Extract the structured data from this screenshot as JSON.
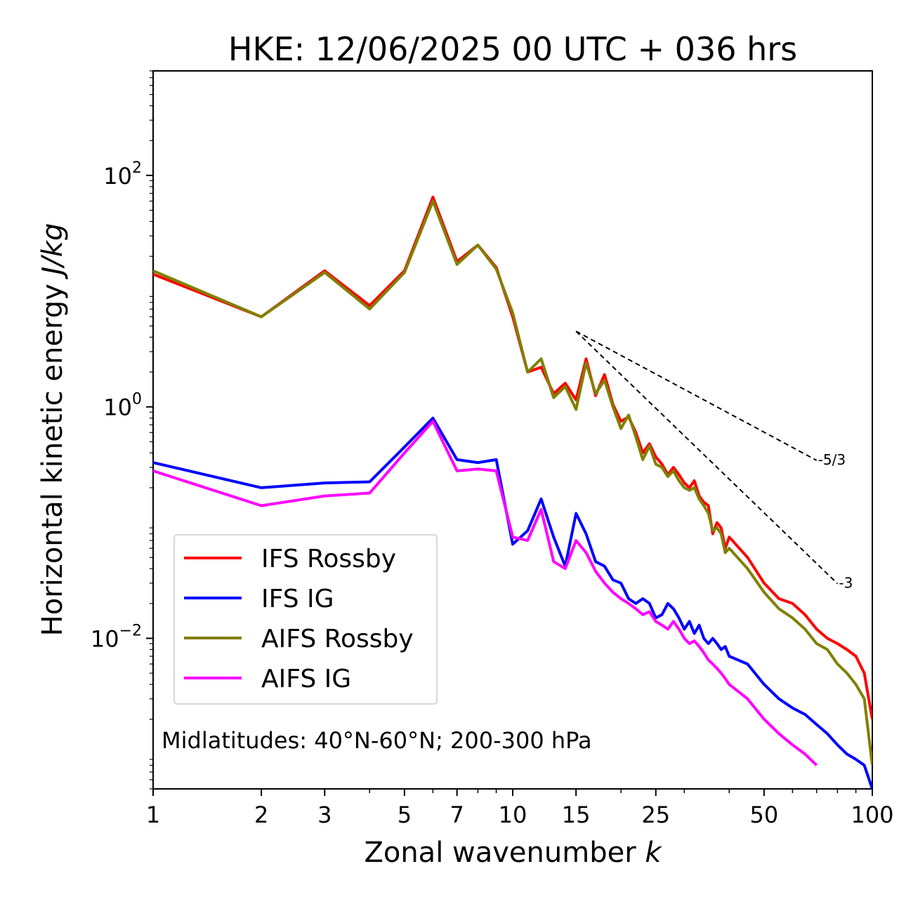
{
  "chart_data": {
    "type": "line",
    "title": "HKE: 12/06/2025 00 UTC + 036 hrs",
    "xlabel_text": "Zonal wavenumber ",
    "xlabel_var": "k",
    "ylabel_text": "Horizontal kinetic energy ",
    "ylabel_unit": "J/kg",
    "xscale": "log",
    "yscale": "log",
    "xlim": [
      1,
      100
    ],
    "ylim": [
      0.0005,
      800
    ],
    "x_ticks": [
      1,
      2,
      3,
      5,
      7,
      10,
      15,
      25,
      50,
      100
    ],
    "x_tick_labels": [
      "1",
      "2",
      "3",
      "5",
      "7",
      "10",
      "15",
      "25",
      "50",
      "100"
    ],
    "y_ticks": [
      {
        "value": 0.01,
        "base": "10",
        "exp": "−2"
      },
      {
        "value": 1,
        "base": "10",
        "exp": "0"
      },
      {
        "value": 100,
        "base": "10",
        "exp": "2"
      }
    ],
    "annotation": "Midlatitudes: 40°N-60°N; 200-300 hPa",
    "legend_position": "lower-left",
    "grid": false,
    "series": [
      {
        "name": "IFS Rossby",
        "color": "#ff0000",
        "x": [
          1,
          2,
          3,
          4,
          5,
          6,
          7,
          8,
          9,
          10,
          11,
          12,
          13,
          14,
          15,
          16,
          17,
          18,
          19,
          20,
          21,
          22,
          23,
          24,
          25,
          26,
          27,
          28,
          29,
          30,
          31,
          32,
          33,
          34,
          35,
          36,
          37,
          38,
          39,
          40,
          45,
          50,
          55,
          60,
          65,
          70,
          75,
          80,
          85,
          90,
          95,
          100
        ],
        "y": [
          14,
          6,
          15,
          7.5,
          15,
          65,
          18,
          25,
          16,
          6,
          2.0,
          2.2,
          1.3,
          1.6,
          1.15,
          2.6,
          1.25,
          1.9,
          1.05,
          0.75,
          0.82,
          0.6,
          0.4,
          0.48,
          0.37,
          0.32,
          0.26,
          0.3,
          0.26,
          0.22,
          0.2,
          0.23,
          0.17,
          0.15,
          0.14,
          0.08,
          0.1,
          0.09,
          0.06,
          0.075,
          0.05,
          0.03,
          0.022,
          0.02,
          0.016,
          0.012,
          0.01,
          0.009,
          0.008,
          0.007,
          0.005,
          0.002
        ]
      },
      {
        "name": "IFS IG",
        "color": "#0000ff",
        "x": [
          1,
          2,
          3,
          4,
          5,
          6,
          7,
          8,
          9,
          10,
          11,
          12,
          13,
          14,
          15,
          16,
          17,
          18,
          19,
          20,
          21,
          22,
          23,
          24,
          25,
          26,
          27,
          28,
          29,
          30,
          31,
          32,
          33,
          34,
          35,
          36,
          37,
          38,
          39,
          40,
          45,
          50,
          55,
          60,
          65,
          70,
          75,
          80,
          85,
          90,
          95,
          100
        ],
        "y": [
          0.33,
          0.2,
          0.22,
          0.225,
          0.45,
          0.8,
          0.35,
          0.33,
          0.35,
          0.065,
          0.085,
          0.16,
          0.075,
          0.042,
          0.12,
          0.08,
          0.046,
          0.042,
          0.032,
          0.03,
          0.022,
          0.02,
          0.022,
          0.02,
          0.015,
          0.016,
          0.02,
          0.018,
          0.015,
          0.012,
          0.014,
          0.011,
          0.013,
          0.01,
          0.009,
          0.01,
          0.009,
          0.008,
          0.0085,
          0.007,
          0.006,
          0.004,
          0.003,
          0.0025,
          0.0022,
          0.0018,
          0.0015,
          0.0012,
          0.001,
          0.0009,
          0.0008,
          0.0005
        ]
      },
      {
        "name": "AIFS Rossby",
        "color": "#808000",
        "x": [
          1,
          2,
          3,
          4,
          5,
          6,
          7,
          8,
          9,
          10,
          11,
          12,
          13,
          14,
          15,
          16,
          17,
          18,
          19,
          20,
          21,
          22,
          23,
          24,
          25,
          26,
          27,
          28,
          29,
          30,
          31,
          32,
          33,
          34,
          35,
          36,
          37,
          38,
          39,
          40,
          45,
          50,
          55,
          60,
          65,
          70,
          75,
          80,
          85,
          90,
          95,
          100
        ],
        "y": [
          15,
          6,
          14.5,
          7,
          14.5,
          60,
          17,
          25,
          15.5,
          6.5,
          2.0,
          2.6,
          1.2,
          1.5,
          0.95,
          2.4,
          1.3,
          1.7,
          1.0,
          0.65,
          0.85,
          0.55,
          0.35,
          0.46,
          0.32,
          0.3,
          0.25,
          0.28,
          0.23,
          0.2,
          0.19,
          0.2,
          0.16,
          0.14,
          0.12,
          0.085,
          0.09,
          0.08,
          0.055,
          0.06,
          0.04,
          0.025,
          0.018,
          0.015,
          0.012,
          0.009,
          0.008,
          0.006,
          0.005,
          0.004,
          0.003,
          0.0008
        ]
      },
      {
        "name": "AIFS IG",
        "color": "#ff00ff",
        "x": [
          1,
          2,
          3,
          4,
          5,
          6,
          7,
          8,
          9,
          10,
          11,
          12,
          13,
          14,
          15,
          16,
          17,
          18,
          19,
          20,
          21,
          22,
          23,
          24,
          25,
          26,
          27,
          28,
          29,
          30,
          31,
          32,
          33,
          34,
          35,
          36,
          37,
          38,
          39,
          40,
          45,
          50,
          55,
          60,
          65,
          70
        ],
        "y": [
          0.28,
          0.14,
          0.17,
          0.18,
          0.4,
          0.75,
          0.28,
          0.29,
          0.28,
          0.075,
          0.07,
          0.13,
          0.046,
          0.04,
          0.07,
          0.055,
          0.038,
          0.03,
          0.025,
          0.022,
          0.02,
          0.018,
          0.016,
          0.017,
          0.014,
          0.013,
          0.012,
          0.014,
          0.012,
          0.01,
          0.009,
          0.0095,
          0.0085,
          0.0075,
          0.0065,
          0.006,
          0.0055,
          0.005,
          0.0045,
          0.004,
          0.003,
          0.002,
          0.0015,
          0.0012,
          0.001,
          0.0008
        ]
      }
    ],
    "reference_lines": [
      {
        "label": "-5/3",
        "x": [
          15,
          70
        ],
        "y": [
          4.5,
          0.345
        ]
      },
      {
        "label": "-3",
        "x": [
          15,
          80
        ],
        "y": [
          4.5,
          0.0297
        ]
      }
    ]
  }
}
